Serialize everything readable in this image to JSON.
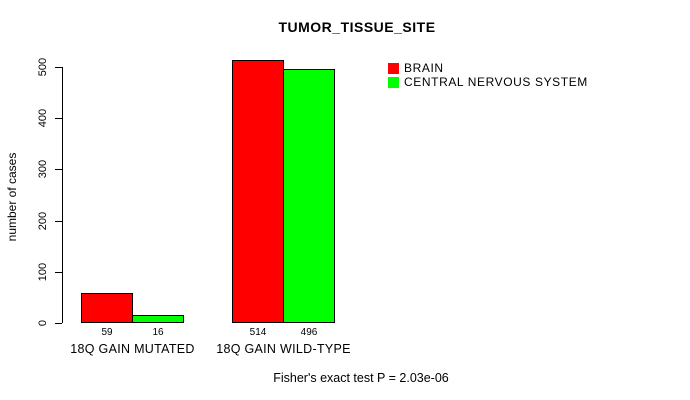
{
  "chart_data": {
    "type": "bar",
    "title": "TUMOR_TISSUE_SITE",
    "xlabel": "",
    "ylabel": "number of cases",
    "categories": [
      "18Q GAIN MUTATED",
      "18Q GAIN WILD-TYPE"
    ],
    "series": [
      {
        "name": "BRAIN",
        "color": "#ff0000",
        "values": [
          59,
          514
        ]
      },
      {
        "name": "CENTRAL NERVOUS SYSTEM",
        "color": "#00ff00",
        "values": [
          16,
          496
        ]
      }
    ],
    "bar_value_labels": [
      [
        "59",
        "514"
      ],
      [
        "16",
        "496"
      ]
    ],
    "ylim": [
      0,
      500
    ],
    "yticks": [
      0,
      100,
      200,
      300,
      400,
      500
    ],
    "grid": false,
    "legend_position": "top-right",
    "annotation": "Fisher's exact test P = 2.03e-06"
  }
}
